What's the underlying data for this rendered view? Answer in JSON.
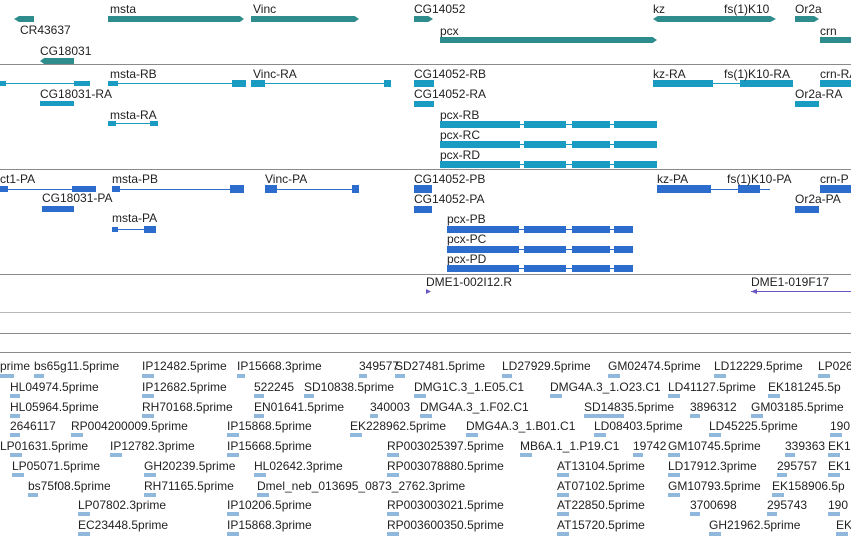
{
  "colors": {
    "gene_track": "#2f8c8c",
    "transcript_track": "#1a9bc2",
    "protein_track": "#2b6ccc",
    "clone_track": "#6a55c0",
    "est_track": "#8fb8dc"
  },
  "tracks": {
    "genes": {
      "features": [
        {
          "label": "msta"
        },
        {
          "label": "Vinc"
        },
        {
          "label": "CG14052"
        },
        {
          "label": "kz"
        },
        {
          "label": "fs(1)K10"
        },
        {
          "label": "Or2a"
        },
        {
          "label": "CR43637"
        },
        {
          "label": "CG18031"
        },
        {
          "label": "pcx"
        },
        {
          "label": "crn"
        }
      ]
    },
    "transcripts": {
      "features": [
        {
          "label": "msta-RB"
        },
        {
          "label": "Vinc-RA"
        },
        {
          "label": "CG14052-RB"
        },
        {
          "label": "kz-RA"
        },
        {
          "label": "fs(1)K10-RA"
        },
        {
          "label": "crn-RA"
        },
        {
          "label": "CG18031-RA"
        },
        {
          "label": "CG14052-RA"
        },
        {
          "label": "Or2a-RA"
        },
        {
          "label": "msta-RA"
        },
        {
          "label": "pcx-RB"
        },
        {
          "label": "pcx-RC"
        },
        {
          "label": "pcx-RD"
        }
      ]
    },
    "proteins": {
      "features": [
        {
          "label": "ct1-PA"
        },
        {
          "label": "msta-PB"
        },
        {
          "label": "Vinc-PA"
        },
        {
          "label": "CG14052-PB"
        },
        {
          "label": "kz-PA"
        },
        {
          "label": "fs(1)K10-PA"
        },
        {
          "label": "crn-P"
        },
        {
          "label": "CG18031-PA"
        },
        {
          "label": "CG14052-PA"
        },
        {
          "label": "Or2a-PA"
        },
        {
          "label": "msta-PA"
        },
        {
          "label": "pcx-PB"
        },
        {
          "label": "pcx-PC"
        },
        {
          "label": "pcx-PD"
        }
      ]
    },
    "clones": {
      "features": [
        {
          "label": "DME1-002I12.R"
        },
        {
          "label": "DME1-019F17"
        }
      ]
    },
    "ests": {
      "rows": [
        [
          "prime",
          "bs65g11.5prime",
          "IP12482.5prime",
          "IP15668.3prime",
          "349577",
          "SD27481.5prime",
          "LD27929.5prime",
          "GM02474.5prime",
          "LD12229.5prime",
          "LP026"
        ],
        [
          "HL04974.5prime",
          "IP12682.5prime",
          "522245",
          "SD10838.5prime",
          "DMG1C.3_1.E05.C1",
          "DMG4A.3_1.O23.C1",
          "LD41127.5prime",
          "EK181245.5p"
        ],
        [
          "HL05964.5prime",
          "RH70168.5prime",
          "EN01641.5prime",
          "340003",
          "DMG4A.3_1.F02.C1",
          "SD14835.5prime",
          "3896312",
          "GM03185.5prime"
        ],
        [
          "2646117",
          "RP004200009.5prime",
          "IP15868.5prime",
          "EK228962.5prime",
          "DMG4A.3_1.B01.C1",
          "LD08403.5prime",
          "LD45225.5prime",
          "190"
        ],
        [
          "LP01631.5prime",
          "IP12782.3prime",
          "IP15668.5prime",
          "RP003025397.5prime",
          "MB6A.1_1.P19.C1",
          "19742",
          "GM10745.5prime",
          "339363",
          "EK1"
        ],
        [
          "LP05071.5prime",
          "GH20239.5prime",
          "HL02642.3prime",
          "RP003078880.5prime",
          "AT13104.5prime",
          "LD17912.3prime",
          "295757",
          "EK1"
        ],
        [
          "bs75f08.5prime",
          "RH71165.5prime",
          "Dmel_neb_013695_0873_2762.3prime",
          "AT07102.5prime",
          "GM10793.5prime",
          "EK158906.5p"
        ],
        [
          "LP07802.3prime",
          "IP10206.5prime",
          "RP003003021.5prime",
          "AT22850.5prime",
          "3700698",
          "295743",
          "190"
        ],
        [
          "EC23448.5prime",
          "IP15868.3prime",
          "RP003600350.5prime",
          "AT15720.5prime",
          "GH21962.5prime",
          "EK"
        ]
      ]
    }
  }
}
